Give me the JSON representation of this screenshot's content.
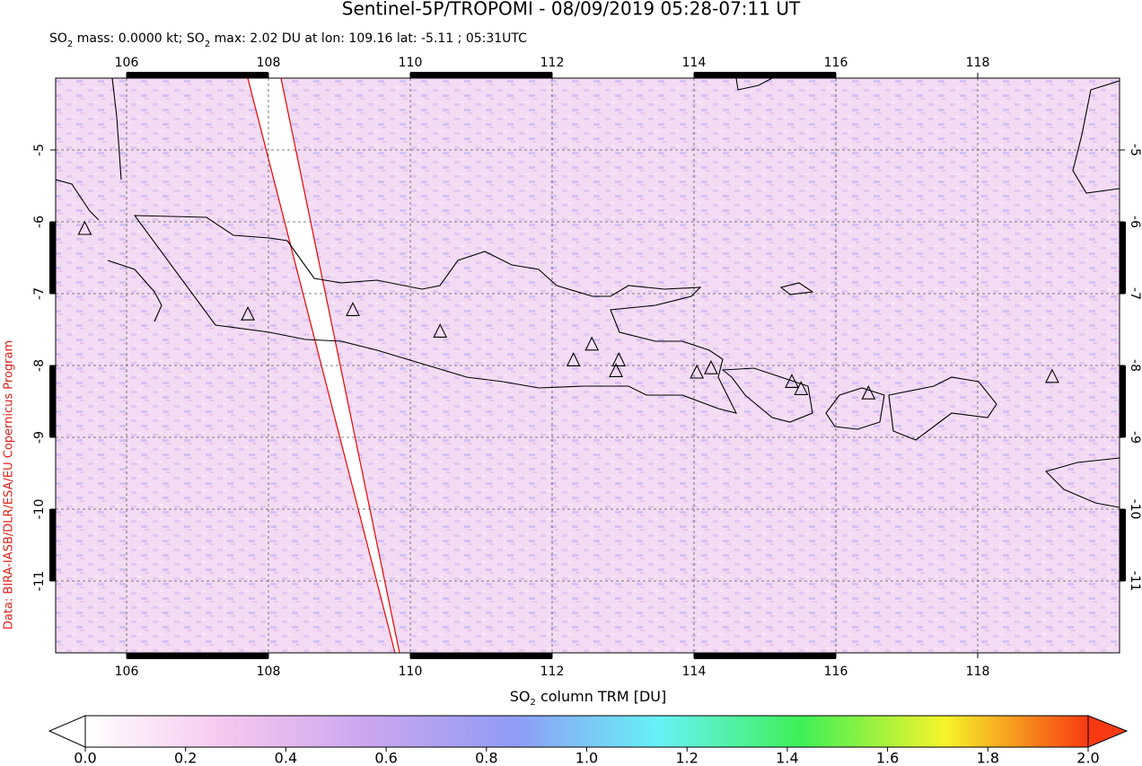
{
  "chart_data": {
    "type": "map",
    "title": "Sentinel-5P/TROPOMI - 08/09/2019 05:28-07:11 UT",
    "subtitle_parts": [
      "SO",
      "2",
      " mass: 0.0000 kt; SO",
      "2",
      " max: 2.02 DU at lon: 109.16 lat: -5.11 ; 05:31UTC"
    ],
    "xlim": [
      105,
      120
    ],
    "ylim": [
      -12,
      -4
    ],
    "xticks": [
      106,
      108,
      110,
      112,
      114,
      116,
      118
    ],
    "yticks": [
      -5,
      -6,
      -7,
      -8,
      -9,
      -10,
      -11
    ],
    "grid": true,
    "volcanoes": {
      "lon": [
        105.41,
        107.71,
        109.19,
        110.42,
        112.3,
        112.56,
        112.94,
        112.9,
        114.04,
        114.24,
        115.38,
        115.51,
        116.46,
        119.05
      ],
      "lat": [
        -6.1,
        -7.29,
        -7.23,
        -7.53,
        -7.93,
        -7.71,
        -7.93,
        -8.08,
        -8.1,
        -8.04,
        -8.23,
        -8.33,
        -8.39,
        -8.16
      ]
    },
    "colorbar_label_parts": [
      "SO",
      "2",
      " column TRM [DU]"
    ],
    "colorbar_lim": [
      0,
      2
    ],
    "colorbar_ticks": [
      {
        "value": 0,
        "label": "0.0"
      },
      0.2,
      0.4,
      0.6,
      0.8,
      {
        "value": 1,
        "label": "1.0"
      },
      1.2,
      1.4,
      1.6,
      1.8,
      {
        "value": 2,
        "label": "2.0"
      }
    ],
    "colorbar_colors": [
      "#ffffff",
      "#f5c6ee",
      "#c9a6f0",
      "#8f9cf5",
      "#66f2f7",
      "#3ef056",
      "#f6f42a",
      "#f73a12"
    ],
    "credit": "Data: BIRA-IASB/DLR/ESA/EU Copernicus Program"
  }
}
